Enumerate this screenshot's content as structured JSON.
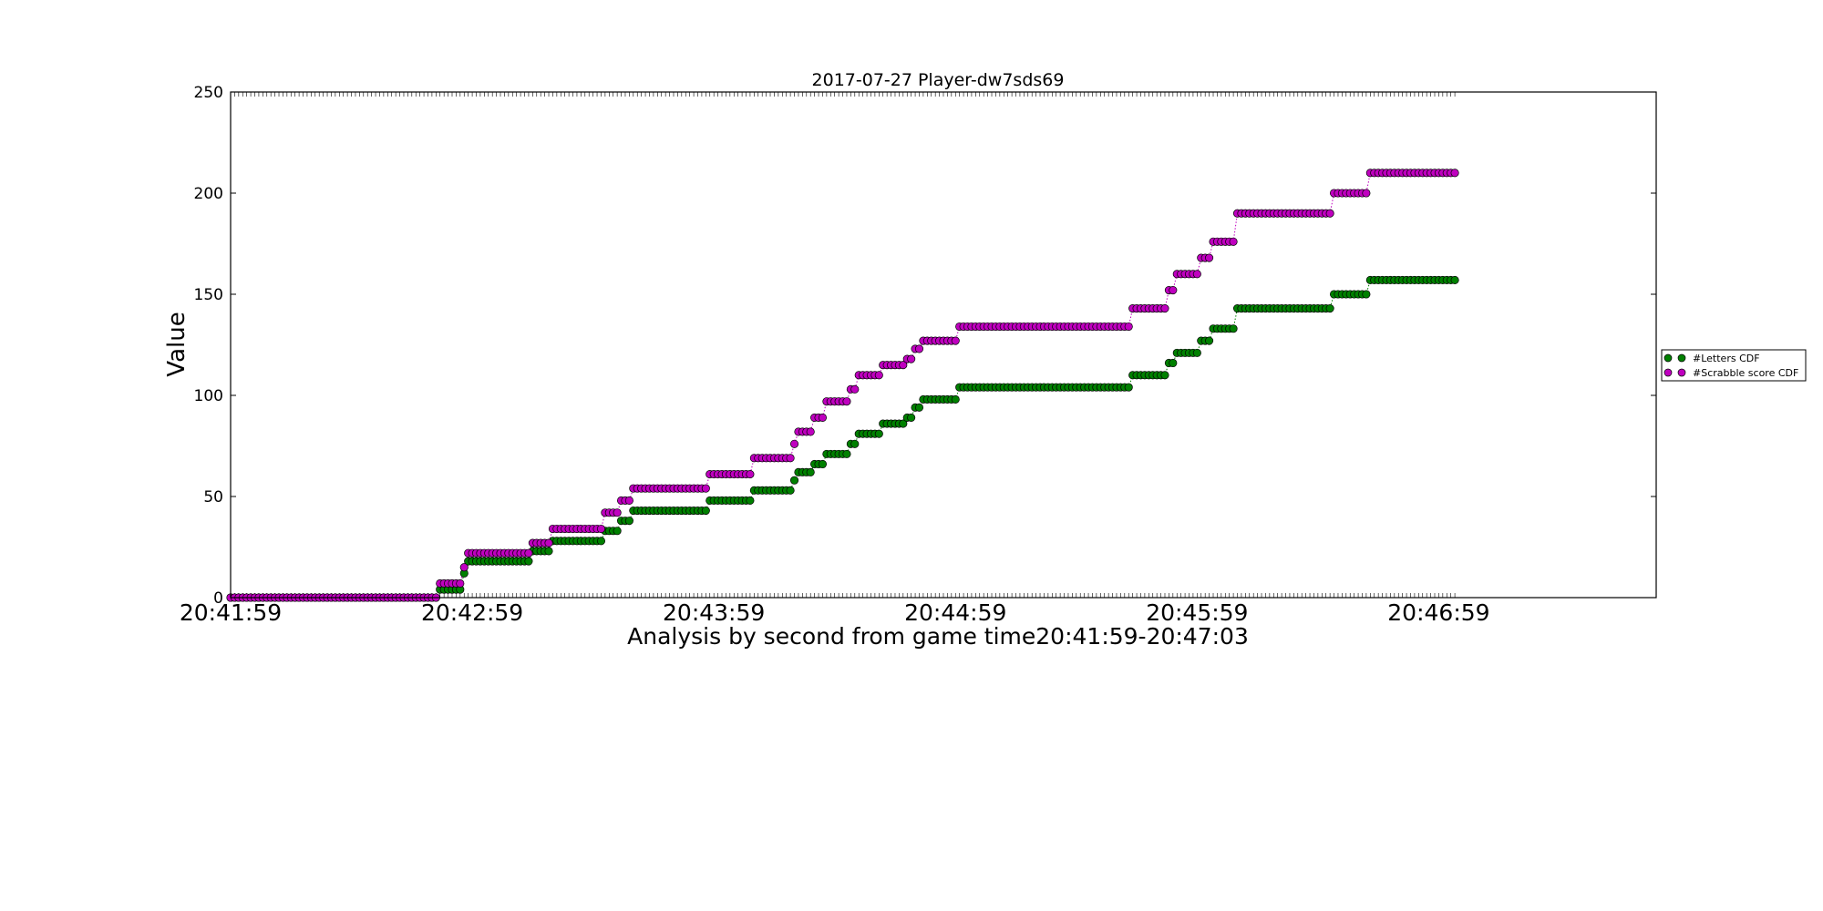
{
  "chart_data": {
    "type": "scatter",
    "title": "2017-07-27 Player-dw7sds69",
    "xlabel": "Analysis by second from game time20:41:59-20:47:03",
    "ylabel": "Value",
    "x_unit": "seconds",
    "xlim": [
      "20:41:59",
      "20:47:53"
    ],
    "ylim": [
      0,
      250
    ],
    "yticks": [
      0,
      50,
      100,
      150,
      200,
      250
    ],
    "xtick_labels": [
      "20:41:59",
      "20:42:59",
      "20:43:59",
      "20:44:59",
      "20:45:59",
      "20:46:59"
    ],
    "grid": false,
    "legend_position": "right",
    "series": [
      {
        "name": "#Letters CDF",
        "color": "#008000",
        "steps": [
          [
            "20:41:59",
            0
          ],
          [
            "20:42:51",
            4
          ],
          [
            "20:42:57",
            12
          ],
          [
            "20:42:58",
            18
          ],
          [
            "20:43:14",
            23
          ],
          [
            "20:43:19",
            28
          ],
          [
            "20:43:32",
            33
          ],
          [
            "20:43:36",
            38
          ],
          [
            "20:43:39",
            43
          ],
          [
            "20:43:58",
            48
          ],
          [
            "20:44:09",
            53
          ],
          [
            "20:44:19",
            58
          ],
          [
            "20:44:20",
            62
          ],
          [
            "20:44:24",
            66
          ],
          [
            "20:44:27",
            71
          ],
          [
            "20:44:33",
            76
          ],
          [
            "20:44:35",
            81
          ],
          [
            "20:44:41",
            86
          ],
          [
            "20:44:47",
            89
          ],
          [
            "20:44:49",
            94
          ],
          [
            "20:44:51",
            98
          ],
          [
            "20:45:00",
            104
          ],
          [
            "20:45:43",
            110
          ],
          [
            "20:45:52",
            116
          ],
          [
            "20:45:54",
            121
          ],
          [
            "20:46:00",
            127
          ],
          [
            "20:46:03",
            133
          ],
          [
            "20:46:09",
            143
          ],
          [
            "20:46:33",
            150
          ],
          [
            "20:46:42",
            157
          ]
        ],
        "end": "20:47:03"
      },
      {
        "name": "#Scrabble score CDF",
        "color": "#bf00bf",
        "steps": [
          [
            "20:41:59",
            0
          ],
          [
            "20:42:51",
            7
          ],
          [
            "20:42:57",
            15
          ],
          [
            "20:42:58",
            22
          ],
          [
            "20:43:14",
            27
          ],
          [
            "20:43:19",
            34
          ],
          [
            "20:43:32",
            42
          ],
          [
            "20:43:36",
            48
          ],
          [
            "20:43:39",
            54
          ],
          [
            "20:43:58",
            61
          ],
          [
            "20:44:09",
            69
          ],
          [
            "20:44:19",
            76
          ],
          [
            "20:44:20",
            82
          ],
          [
            "20:44:24",
            89
          ],
          [
            "20:44:27",
            97
          ],
          [
            "20:44:33",
            103
          ],
          [
            "20:44:35",
            110
          ],
          [
            "20:44:41",
            115
          ],
          [
            "20:44:47",
            118
          ],
          [
            "20:44:49",
            123
          ],
          [
            "20:44:51",
            127
          ],
          [
            "20:45:00",
            134
          ],
          [
            "20:45:43",
            143
          ],
          [
            "20:45:52",
            152
          ],
          [
            "20:45:54",
            160
          ],
          [
            "20:46:00",
            168
          ],
          [
            "20:46:03",
            176
          ],
          [
            "20:46:09",
            190
          ],
          [
            "20:46:33",
            200
          ],
          [
            "20:46:42",
            210
          ]
        ],
        "end": "20:47:03"
      }
    ]
  }
}
